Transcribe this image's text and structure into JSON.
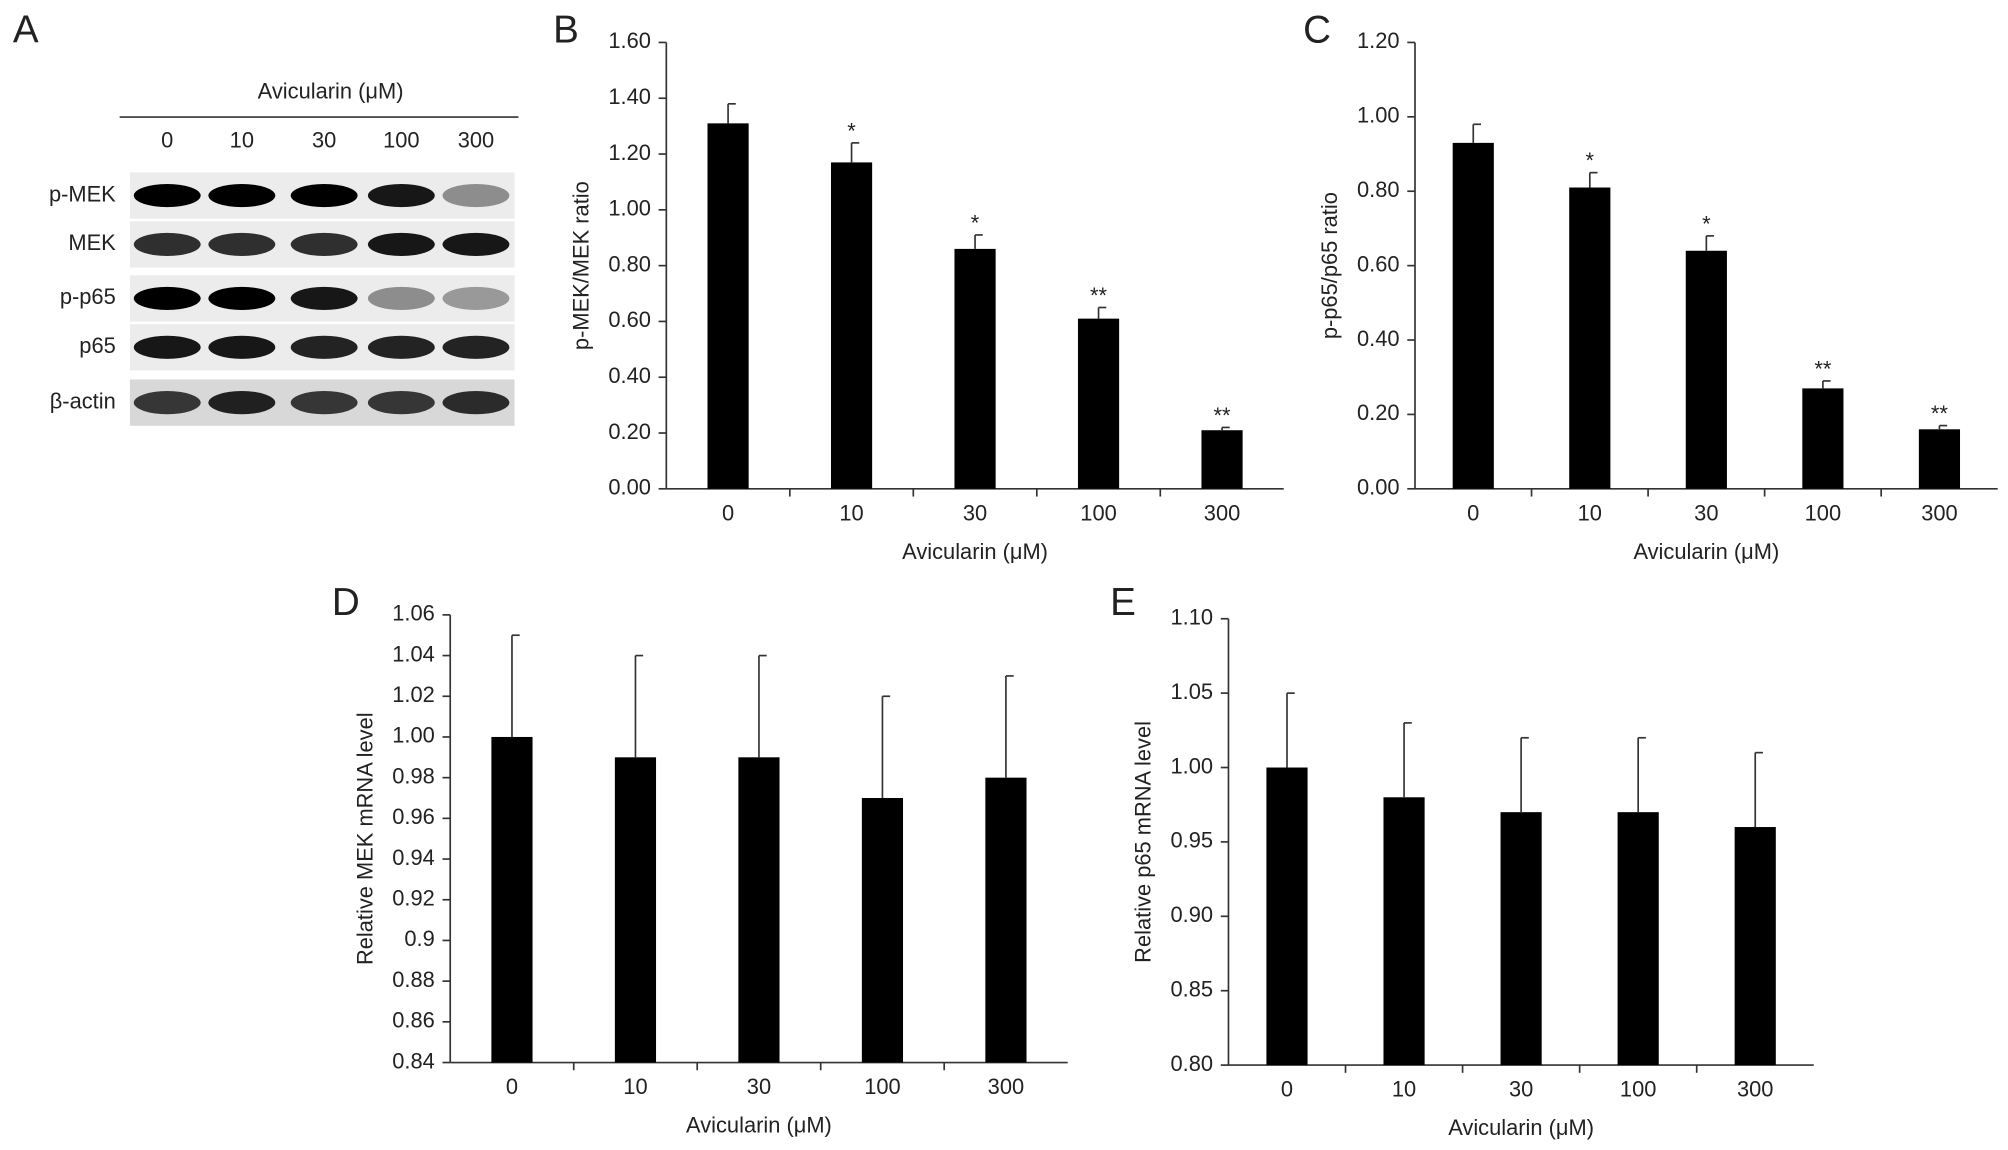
{
  "blot": {
    "panel": "A",
    "header": "Avicularin (μM)",
    "lanes": [
      "0",
      "10",
      "30",
      "100",
      "300"
    ],
    "rows": [
      "p-MEK",
      "MEK",
      "p-p65",
      "p65",
      "β-actin"
    ]
  },
  "chart_data": [
    {
      "type": "bar",
      "panel": "B",
      "x_label": "Avicularin (μM)",
      "y_label": "p-MEK/MEK ratio",
      "categories": [
        "0",
        "10",
        "30",
        "100",
        "300"
      ],
      "values": [
        1.31,
        1.17,
        0.86,
        0.61,
        0.21
      ],
      "errors": [
        0.07,
        0.07,
        0.05,
        0.04,
        0.01
      ],
      "significance": [
        null,
        "*",
        "*",
        "**",
        "**"
      ],
      "color": "#000000",
      "ylim": [
        0,
        1.6
      ],
      "yticks": [
        {
          "value": 0,
          "label": "0.00"
        },
        {
          "value": 0.2,
          "label": "0.20"
        },
        {
          "value": 0.4,
          "label": "0.40"
        },
        {
          "value": 0.6,
          "label": "0.60"
        },
        {
          "value": 0.8,
          "label": "0.80"
        },
        {
          "value": 1,
          "label": "1.00"
        },
        {
          "value": 1.2,
          "label": "1.20"
        },
        {
          "value": 1.4,
          "label": "1.40"
        },
        {
          "value": 1.6,
          "label": "1.60"
        }
      ]
    },
    {
      "type": "bar",
      "panel": "C",
      "x_label": "Avicularin (μM)",
      "y_label": "p-p65/p65 ratio",
      "categories": [
        "0",
        "10",
        "30",
        "100",
        "300"
      ],
      "values": [
        0.93,
        0.81,
        0.64,
        0.27,
        0.16
      ],
      "errors": [
        0.05,
        0.04,
        0.04,
        0.02,
        0.01
      ],
      "significance": [
        null,
        "*",
        "*",
        "**",
        "**"
      ],
      "color": "#000000",
      "ylim": [
        0,
        1.2
      ],
      "yticks": [
        {
          "value": 0,
          "label": "0.00"
        },
        {
          "value": 0.2,
          "label": "0.20"
        },
        {
          "value": 0.4,
          "label": "0.40"
        },
        {
          "value": 0.6,
          "label": "0.60"
        },
        {
          "value": 0.8,
          "label": "0.80"
        },
        {
          "value": 1,
          "label": "1.00"
        },
        {
          "value": 1.2,
          "label": "1.20"
        }
      ]
    },
    {
      "type": "bar",
      "panel": "D",
      "x_label": "Avicularin (μM)",
      "y_label": "Relative MEK mRNA level",
      "categories": [
        "0",
        "10",
        "30",
        "100",
        "300"
      ],
      "values": [
        1.0,
        0.99,
        0.99,
        0.97,
        0.98
      ],
      "errors": [
        0.05,
        0.05,
        0.05,
        0.05,
        0.05
      ],
      "color": "#000000",
      "ylim": [
        0.84,
        1.06
      ],
      "yticks": [
        0.84,
        0.86,
        0.88,
        0.9,
        0.92,
        0.94,
        0.96,
        0.98,
        {
          "value": 1,
          "label": "1.00"
        },
        1.02,
        1.04,
        1.06
      ]
    },
    {
      "type": "bar",
      "panel": "E",
      "x_label": "Avicularin (μM)",
      "y_label": "Relative p65 mRNA level",
      "categories": [
        "0",
        "10",
        "30",
        "100",
        "300"
      ],
      "values": [
        1.0,
        0.98,
        0.97,
        0.97,
        0.96
      ],
      "errors": [
        0.05,
        0.05,
        0.05,
        0.05,
        0.05
      ],
      "color": "#000000",
      "ylim": [
        0.8,
        1.1
      ],
      "yticks": [
        {
          "value": 0.8,
          "label": "0.80"
        },
        0.85,
        {
          "value": 0.9,
          "label": "0.90"
        },
        0.95,
        {
          "value": 1,
          "label": "1.00"
        },
        1.05,
        {
          "value": 1.1,
          "label": "1.10"
        }
      ]
    }
  ]
}
